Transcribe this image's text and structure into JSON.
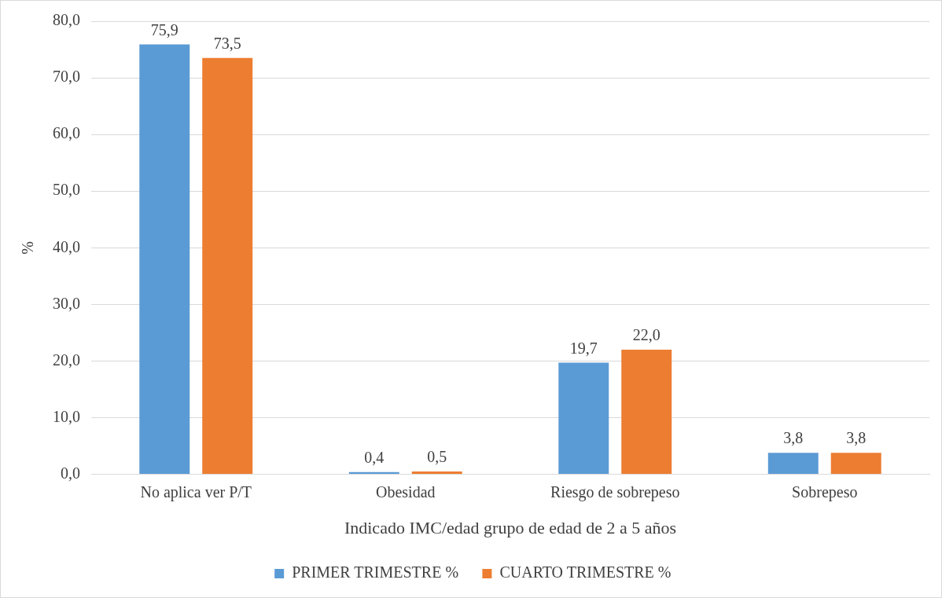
{
  "chart_data": {
    "type": "bar",
    "categories": [
      "No aplica ver P/T",
      "Obesidad",
      "Riesgo de sobrepeso",
      "Sobrepeso"
    ],
    "series": [
      {
        "name": "PRIMER TRIMESTRE %",
        "color": "#5b9bd5",
        "values": [
          75.9,
          0.4,
          19.7,
          3.8
        ],
        "value_labels": [
          "75,9",
          "0,4",
          "19,7",
          "3,8"
        ]
      },
      {
        "name": "CUARTO TRIMESTRE %",
        "color": "#ed7d31",
        "values": [
          73.5,
          0.5,
          22.0,
          3.8
        ],
        "value_labels": [
          "73,5",
          "0,5",
          "22,0",
          "3,8"
        ]
      }
    ],
    "xlabel": "Indicado IMC/edad grupo de edad de 2 a 5 años",
    "ylabel": "%",
    "ylim": [
      0,
      80
    ],
    "yticks": [
      {
        "value": 0,
        "label": "0,0"
      },
      {
        "value": 10,
        "label": "10,0"
      },
      {
        "value": 20,
        "label": "20,0"
      },
      {
        "value": 30,
        "label": "30,0"
      },
      {
        "value": 40,
        "label": "40,0"
      },
      {
        "value": 50,
        "label": "50,0"
      },
      {
        "value": 60,
        "label": "60,0"
      },
      {
        "value": 70,
        "label": "70,0"
      },
      {
        "value": 80,
        "label": "80,0"
      }
    ],
    "grid": "y",
    "legend": "bottom"
  }
}
